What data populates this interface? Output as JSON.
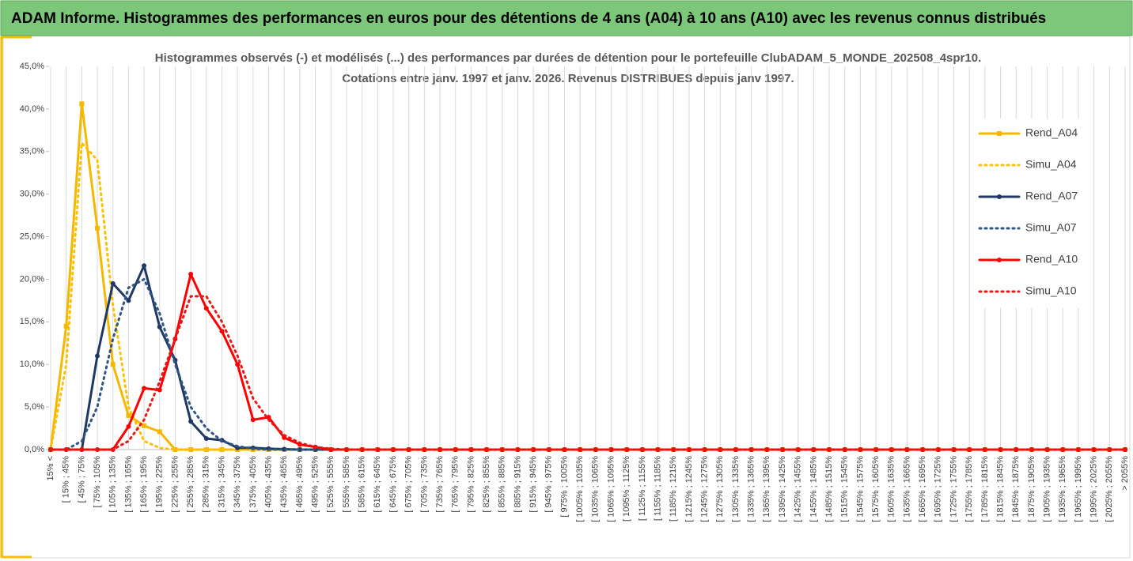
{
  "header": {
    "title": "ADAM Informe. Histogrammes des performances en euros pour des détentions de 4 ans (A04) à 10 ans (A10) avec les revenus connus distribués"
  },
  "chart_data": {
    "type": "line",
    "title": "Histogrammes observés (-) et modélisés (...) des performances par durées de détention pour le portefeuille ClubADAM_5_MONDE_202508_4spr10.",
    "subtitle": "Cotations entre janv. 1997 et janv. 2026. Revenus DISTRIBUES depuis janv 1997.",
    "categories": [
      "15% <",
      "[ 15% ; 45%",
      "[ 45% ; 75%",
      "[ 75% ; 105%",
      "[ 105% ; 135%",
      "[ 135% ; 165%",
      "[ 165% ; 195%",
      "[ 195% ; 225%",
      "[ 225% ; 255%",
      "[ 255% ; 285%",
      "[ 285% ; 315%",
      "[ 315% ; 345%",
      "[ 345% ; 375%",
      "[ 375% ; 405%",
      "[ 405% ; 435%",
      "[ 435% ; 465%",
      "[ 465% ; 495%",
      "[ 495% ; 525%",
      "[ 525% ; 555%",
      "[ 555% ; 585%",
      "[ 585% ; 615%",
      "[ 615% ; 645%",
      "[ 645% ; 675%",
      "[ 675% ; 705%",
      "[ 705% ; 735%",
      "[ 735% ; 765%",
      "[ 765% ; 795%",
      "[ 795% ; 825%",
      "[ 825% ; 855%",
      "[ 855% ; 885%",
      "[ 885% ; 915%",
      "[ 915% ; 945%",
      "[ 945% ; 975%",
      "[ 975% ; 1005%",
      "[ 1005% ; 1035%",
      "[ 1035% ; 1065%",
      "[ 1065% ; 1095%",
      "[ 1095% ; 1125%",
      "[ 1125% ; 1155%",
      "[ 1155% ; 1185%",
      "[ 1185% ; 1215%",
      "[ 1215% ; 1245%",
      "[ 1245% ; 1275%",
      "[ 1275% ; 1305%",
      "[ 1305% ; 1335%",
      "[ 1335% ; 1365%",
      "[ 1365% ; 1395%",
      "[ 1395% ; 1425%",
      "[ 1425% ; 1455%",
      "[ 1455% ; 1485%",
      "[ 1485% ; 1515%",
      "[ 1515% ; 1545%",
      "[ 1545% ; 1575%",
      "[ 1575% ; 1605%",
      "[ 1605% ; 1635%",
      "[ 1635% ; 1665%",
      "[ 1665% ; 1695%",
      "[ 1695% ; 1725%",
      "[ 1725% ; 1755%",
      "[ 1755% ; 1785%",
      "[ 1785% ; 1815%",
      "[ 1815% ; 1845%",
      "[ 1845% ; 1875%",
      "[ 1875% ; 1905%",
      "[ 1905% ; 1935%",
      "[ 1935% ; 1965%",
      "[ 1965% ; 1995%",
      "[ 1995% ; 2025%",
      "[ 2025% ; 2055%",
      "> 2055%"
    ],
    "series": [
      {
        "name": "Rend_A04",
        "color": "#f5b800",
        "style": "solid",
        "marker": "square",
        "values": [
          0,
          14.5,
          40.6,
          26,
          10,
          4,
          2.8,
          2.1,
          0,
          0,
          0,
          0,
          0,
          0,
          0,
          0,
          0,
          0,
          0,
          0,
          0,
          0,
          0,
          0,
          0,
          0,
          0,
          0,
          0,
          0,
          0,
          0,
          0,
          0,
          0,
          0,
          0,
          0,
          0,
          0,
          0,
          0,
          0,
          0,
          0,
          0,
          0,
          0,
          0,
          0,
          0,
          0,
          0,
          0,
          0,
          0,
          0,
          0,
          0,
          0,
          0,
          0,
          0,
          0,
          0,
          0,
          0,
          0,
          0,
          0
        ]
      },
      {
        "name": "Simu_A04",
        "color": "#ffc000",
        "style": "dotted",
        "marker": null,
        "values": [
          0,
          10,
          36,
          34,
          17,
          5,
          1,
          0.2,
          0,
          0,
          0,
          0,
          0,
          0,
          0,
          0,
          0,
          0,
          0,
          0,
          0,
          0,
          0,
          0,
          0,
          0,
          0,
          0,
          0,
          0,
          0,
          0,
          0,
          0,
          0,
          0,
          0,
          0,
          0,
          0,
          0,
          0,
          0,
          0,
          0,
          0,
          0,
          0,
          0,
          0,
          0,
          0,
          0,
          0,
          0,
          0,
          0,
          0,
          0,
          0,
          0,
          0,
          0,
          0,
          0,
          0,
          0,
          0,
          0,
          0
        ]
      },
      {
        "name": "Rend_A07",
        "color": "#1f3864",
        "style": "solid",
        "marker": "circle",
        "values": [
          0,
          0,
          0,
          11,
          19.5,
          17.5,
          21.6,
          14.4,
          10.5,
          3.3,
          1.3,
          1.1,
          0.2,
          0.2,
          0.1,
          0.05,
          0,
          0,
          0,
          0,
          0,
          0,
          0,
          0,
          0,
          0,
          0,
          0,
          0,
          0,
          0,
          0,
          0,
          0,
          0,
          0,
          0,
          0,
          0,
          0,
          0,
          0,
          0,
          0,
          0,
          0,
          0,
          0,
          0,
          0,
          0,
          0,
          0,
          0,
          0,
          0,
          0,
          0,
          0,
          0,
          0,
          0,
          0,
          0,
          0,
          0,
          0,
          0,
          0,
          0
        ]
      },
      {
        "name": "Simu_A07",
        "color": "#2e5583",
        "style": "dotted",
        "marker": null,
        "values": [
          0,
          0,
          1,
          5,
          13,
          19,
          20,
          16,
          10,
          5,
          2.5,
          1,
          0.4,
          0.1,
          0,
          0,
          0,
          0,
          0,
          0,
          0,
          0,
          0,
          0,
          0,
          0,
          0,
          0,
          0,
          0,
          0,
          0,
          0,
          0,
          0,
          0,
          0,
          0,
          0,
          0,
          0,
          0,
          0,
          0,
          0,
          0,
          0,
          0,
          0,
          0,
          0,
          0,
          0,
          0,
          0,
          0,
          0,
          0,
          0,
          0,
          0,
          0,
          0,
          0,
          0,
          0,
          0,
          0,
          0,
          0
        ]
      },
      {
        "name": "Rend_A10",
        "color": "#ff0000",
        "style": "solid",
        "marker": "circle",
        "values": [
          0,
          0,
          0,
          0,
          0,
          2.7,
          7.2,
          7,
          13,
          20.6,
          16.6,
          13.9,
          10,
          3.5,
          3.8,
          1.4,
          0.6,
          0.3,
          0,
          0,
          0,
          0,
          0,
          0,
          0,
          0,
          0,
          0,
          0,
          0,
          0,
          0,
          0,
          0,
          0,
          0,
          0,
          0,
          0,
          0,
          0,
          0,
          0,
          0,
          0,
          0,
          0,
          0,
          0,
          0,
          0,
          0,
          0,
          0,
          0,
          0,
          0,
          0,
          0,
          0,
          0,
          0,
          0,
          0,
          0,
          0,
          0,
          0,
          0,
          0
        ]
      },
      {
        "name": "Simu_A10",
        "color": "#e81818",
        "style": "dotted",
        "marker": null,
        "values": [
          0,
          0,
          0,
          0,
          0,
          1,
          3.5,
          8,
          13,
          18,
          18,
          15,
          11,
          6,
          3.5,
          1.7,
          0.8,
          0.3,
          0.1,
          0,
          0,
          0,
          0,
          0,
          0,
          0,
          0,
          0,
          0,
          0,
          0,
          0,
          0,
          0,
          0,
          0,
          0,
          0,
          0,
          0,
          0,
          0,
          0,
          0,
          0,
          0,
          0,
          0,
          0,
          0,
          0,
          0,
          0,
          0,
          0,
          0,
          0,
          0,
          0,
          0,
          0,
          0,
          0,
          0,
          0,
          0,
          0,
          0,
          0,
          0
        ]
      }
    ],
    "ylim": [
      0,
      45
    ],
    "yticks": [
      {
        "value": 0,
        "label": "0,0%"
      },
      {
        "value": 5,
        "label": "5,0%"
      },
      {
        "value": 10,
        "label": "10,0%"
      },
      {
        "value": 15,
        "label": "15,0%"
      },
      {
        "value": 20,
        "label": "20,0%"
      },
      {
        "value": 25,
        "label": "25,0%"
      },
      {
        "value": 30,
        "label": "30,0%"
      },
      {
        "value": 35,
        "label": "35,0%"
      },
      {
        "value": 40,
        "label": "40,0%"
      },
      {
        "value": 45,
        "label": "45,0%"
      }
    ],
    "grid": "x",
    "legend": "right"
  }
}
